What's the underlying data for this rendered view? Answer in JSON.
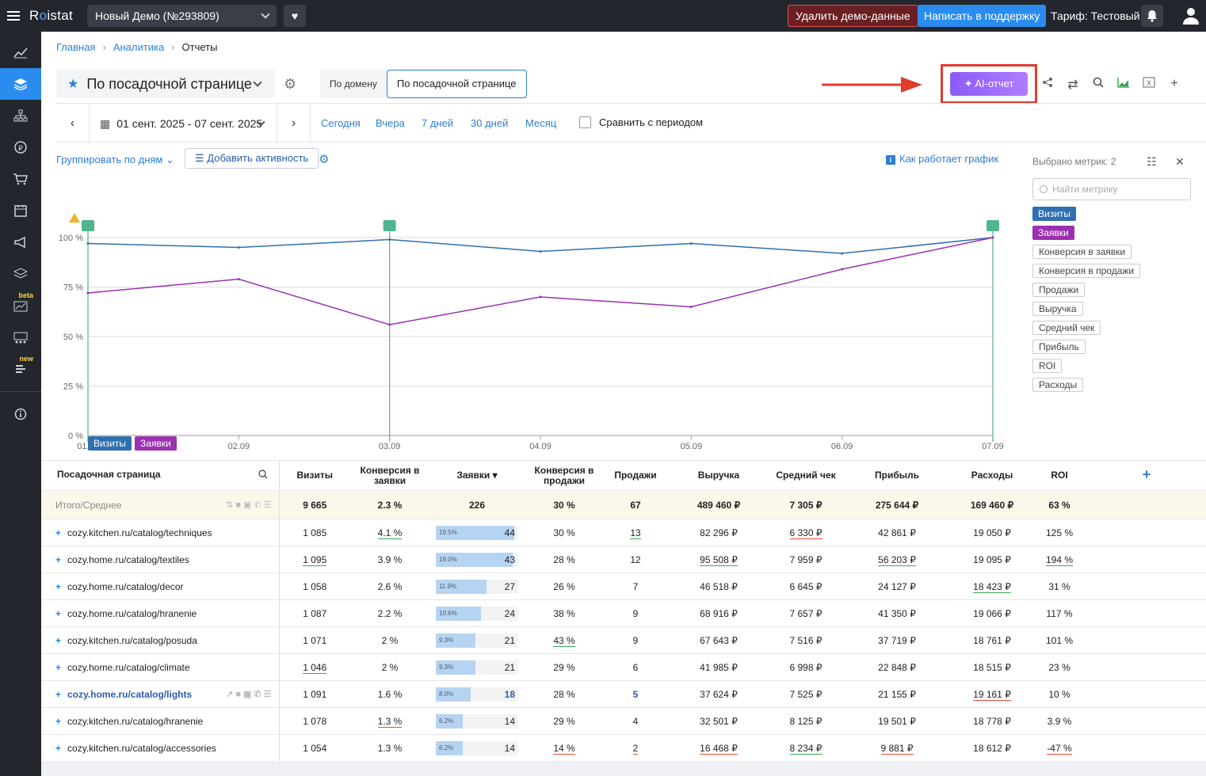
{
  "topbar": {
    "logo_a": "R",
    "logo_o": "o",
    "logo_b": "istat",
    "project": "Новый Демо (№293809)",
    "delete_demo": "Удалить демо-данные",
    "support": "Написать в поддержку",
    "tariff": "Тариф: Тестовый"
  },
  "sidebar": {
    "beta": "beta",
    "new": "new"
  },
  "breadcrumbs": [
    "Главная",
    "Аналитика",
    "Отчеты"
  ],
  "report": {
    "title": "По посадочной странице",
    "seg_domain": "По домену",
    "seg_page": "По посадочной странице",
    "ai_button": "✦ AI-отчет"
  },
  "period": {
    "date": "01 сент. 2025 - 07 сент. 2025",
    "today": "Сегодня",
    "yesterday": "Вчера",
    "week": "7 дней",
    "days30": "30 дней",
    "month": "Месяц",
    "compare": "Сравнить с периодом"
  },
  "chart_controls": {
    "group_by": "Группировать по дням",
    "add_activity": "Добавить активность",
    "how_chart": "Как работает график"
  },
  "chart_data": {
    "type": "line",
    "x": [
      "01.09",
      "02.09",
      "03.09",
      "04.09",
      "05.09",
      "06.09",
      "07.09"
    ],
    "yticks": [
      "0 %",
      "25 %",
      "50 %",
      "75 %",
      "100 %"
    ],
    "ylim": [
      0,
      100
    ],
    "series": [
      {
        "name": "Визиты",
        "color": "#2f6fb0",
        "values": [
          97,
          95,
          99,
          93,
          97,
          92,
          100
        ]
      },
      {
        "name": "Заявки",
        "color": "#9b30b0",
        "values": [
          72,
          79,
          56,
          70,
          65,
          84,
          100
        ]
      }
    ],
    "activity_markers": [
      "01.09",
      "03.09",
      "07.09"
    ]
  },
  "metrics_panel": {
    "selected": "Выбрано метрик: 2",
    "search_placeholder": "Найти метрику",
    "items": [
      {
        "label": "Визиты",
        "on": true,
        "color": "#2f6fb0"
      },
      {
        "label": "Заявки",
        "on": true,
        "color": "#9b30b0"
      },
      {
        "label": "Конверсия в заявки"
      },
      {
        "label": "Конверсия в продажи"
      },
      {
        "label": "Продажи"
      },
      {
        "label": "Выручка"
      },
      {
        "label": "Средний чек"
      },
      {
        "label": "Прибыль"
      },
      {
        "label": "ROI"
      },
      {
        "label": "Расходы"
      }
    ]
  },
  "table": {
    "headers": [
      "Посадочная страница",
      "Визиты",
      "Конверсия в заявки",
      "Заявки ▾",
      "Конверсия в продажи",
      "Продажи",
      "Выручка",
      "Средний чек",
      "Прибыль",
      "Расходы",
      "ROI"
    ],
    "total": {
      "label": "Итого/Среднее",
      "cells": [
        "9 665",
        "2.3 %",
        "226",
        "30 %",
        "67",
        "489 460 ₽",
        "7 305 ₽",
        "275 644 ₽",
        "169 460 ₽",
        "63 %"
      ]
    },
    "rows": [
      {
        "page": "cozy.kitchen.ru/catalog/techniques",
        "visits": "1 085",
        "conv": "4.1 %",
        "leads": "44",
        "share": "19.5%",
        "fill": 0.95,
        "conv_sales": "30 %",
        "sales": "13",
        "revenue": "82 296 ₽",
        "avg": "6 330 ₽",
        "profit": "42 861 ₽",
        "costs": "19 050 ₽",
        "roi": "125 %",
        "u": {
          "conv": "g",
          "sales": "g",
          "avg": "r"
        }
      },
      {
        "page": "cozy.home.ru/catalog/textiles",
        "visits": "1 095",
        "conv": "3.9 %",
        "leads": "43",
        "share": "19.0%",
        "fill": 0.93,
        "conv_sales": "28 %",
        "sales": "12",
        "revenue": "95 508 ₽",
        "avg": "7 959 ₽",
        "profit": "56 203 ₽",
        "costs": "19 095 ₽",
        "roi": "194 %",
        "u": {
          "visits": "g",
          "revenue": "g",
          "profit": "g",
          "roi": "g"
        }
      },
      {
        "page": "cozy.home.ru/catalog/decor",
        "visits": "1 058",
        "conv": "2.6 %",
        "leads": "27",
        "share": "11.9%",
        "fill": 0.62,
        "conv_sales": "26 %",
        "sales": "7",
        "revenue": "46 518 ₽",
        "avg": "6 645 ₽",
        "profit": "24 127 ₽",
        "costs": "18 423 ₽",
        "roi": "31 %",
        "u": {
          "costs": "g"
        }
      },
      {
        "page": "cozy.home.ru/catalog/hranenie",
        "visits": "1 087",
        "conv": "2.2 %",
        "leads": "24",
        "share": "10.6%",
        "fill": 0.55,
        "conv_sales": "38 %",
        "sales": "9",
        "revenue": "68 916 ₽",
        "avg": "7 657 ₽",
        "profit": "41 350 ₽",
        "costs": "19 066 ₽",
        "roi": "117 %",
        "u": {}
      },
      {
        "page": "cozy.kitchen.ru/catalog/posuda",
        "visits": "1 071",
        "conv": "2 %",
        "leads": "21",
        "share": "9.3%",
        "fill": 0.48,
        "conv_sales": "43 %",
        "sales": "9",
        "revenue": "67 643 ₽",
        "avg": "7 516 ₽",
        "profit": "37 719 ₽",
        "costs": "18 761 ₽",
        "roi": "101 %",
        "u": {
          "conv_sales": "g"
        }
      },
      {
        "page": "cozy.home.ru/catalog/climate",
        "visits": "1 046",
        "conv": "2 %",
        "leads": "21",
        "share": "9.3%",
        "fill": 0.48,
        "conv_sales": "29 %",
        "sales": "6",
        "revenue": "41 985 ₽",
        "avg": "6 998 ₽",
        "profit": "22 848 ₽",
        "costs": "18 515 ₽",
        "roi": "23 %",
        "u": {
          "visits": "r"
        }
      },
      {
        "page": "cozy.home.ru/catalog/lights",
        "visits": "1 091",
        "conv": "1.6 %",
        "leads": "18",
        "share": "8.0%",
        "fill": 0.42,
        "conv_sales": "28 %",
        "sales": "5",
        "revenue": "37 624 ₽",
        "avg": "7 525 ₽",
        "profit": "21 155 ₽",
        "costs": "19 161 ₽",
        "roi": "10 %",
        "u": {
          "costs": "r"
        },
        "hl": true
      },
      {
        "page": "cozy.kitchen.ru/catalog/hranenie",
        "visits": "1 078",
        "conv": "1.3 %",
        "leads": "14",
        "share": "6.2%",
        "fill": 0.33,
        "conv_sales": "29 %",
        "sales": "4",
        "revenue": "32 501 ₽",
        "avg": "8 125 ₽",
        "profit": "19 501 ₽",
        "costs": "18 778 ₽",
        "roi": "3.9 %",
        "u": {
          "conv": "r"
        }
      },
      {
        "page": "cozy.kitchen.ru/catalog/accessories",
        "visits": "1 054",
        "conv": "1.3 %",
        "leads": "14",
        "share": "6.2%",
        "fill": 0.33,
        "conv_sales": "14 %",
        "sales": "2",
        "revenue": "16 468 ₽",
        "avg": "8 234 ₽",
        "profit": "9 881 ₽",
        "costs": "18 612 ₽",
        "roi": "-47 %",
        "u": {
          "conv_sales": "r",
          "sales": "r",
          "revenue": "r",
          "avg": "g",
          "profit": "r",
          "roi": "r"
        }
      }
    ]
  }
}
